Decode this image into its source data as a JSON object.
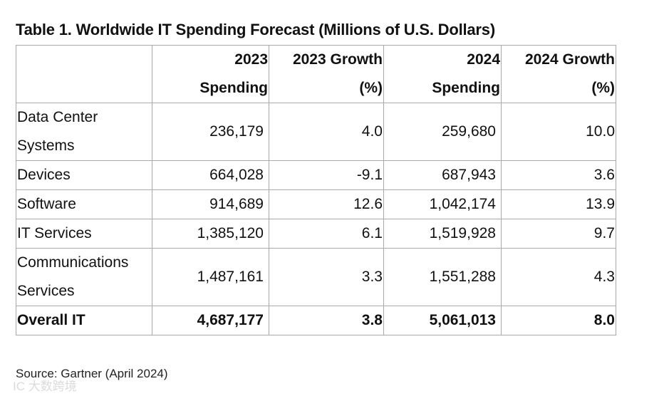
{
  "title": "Table 1. Worldwide IT Spending Forecast (Millions of U.S. Dollars)",
  "table": {
    "headers": [
      {
        "line1": "",
        "line2": ""
      },
      {
        "line1": "2023",
        "line2": "Spending"
      },
      {
        "line1": "2023 Growth",
        "line2": "(%)"
      },
      {
        "line1": "2024",
        "line2": "Spending"
      },
      {
        "line1": "2024 Growth",
        "line2": "(%)"
      }
    ],
    "rows": [
      {
        "category": [
          "Data Center",
          "Systems"
        ],
        "spend_2023": "236,179",
        "growth_2023": "4.0",
        "spend_2024": "259,680",
        "growth_2024": "10.0"
      },
      {
        "category": [
          "Devices"
        ],
        "spend_2023": "664,028",
        "growth_2023": "-9.1",
        "spend_2024": "687,943",
        "growth_2024": "3.6"
      },
      {
        "category": [
          "Software"
        ],
        "spend_2023": "914,689",
        "growth_2023": "12.6",
        "spend_2024": "1,042,174",
        "growth_2024": "13.9"
      },
      {
        "category": [
          "IT Services"
        ],
        "spend_2023": "1,385,120",
        "growth_2023": "6.1",
        "spend_2024": "1,519,928",
        "growth_2024": "9.7"
      },
      {
        "category": [
          "Communications",
          "Services"
        ],
        "spend_2023": "1,487,161",
        "growth_2023": "3.3",
        "spend_2024": "1,551,288",
        "growth_2024": "4.3"
      }
    ],
    "total": {
      "category": "Overall IT",
      "spend_2023": "4,687,177",
      "growth_2023": "3.8",
      "spend_2024": "5,061,013",
      "growth_2024": "8.0"
    }
  },
  "source": "Source: Gartner (April 2024)",
  "watermark": "IC 大数跨境"
}
